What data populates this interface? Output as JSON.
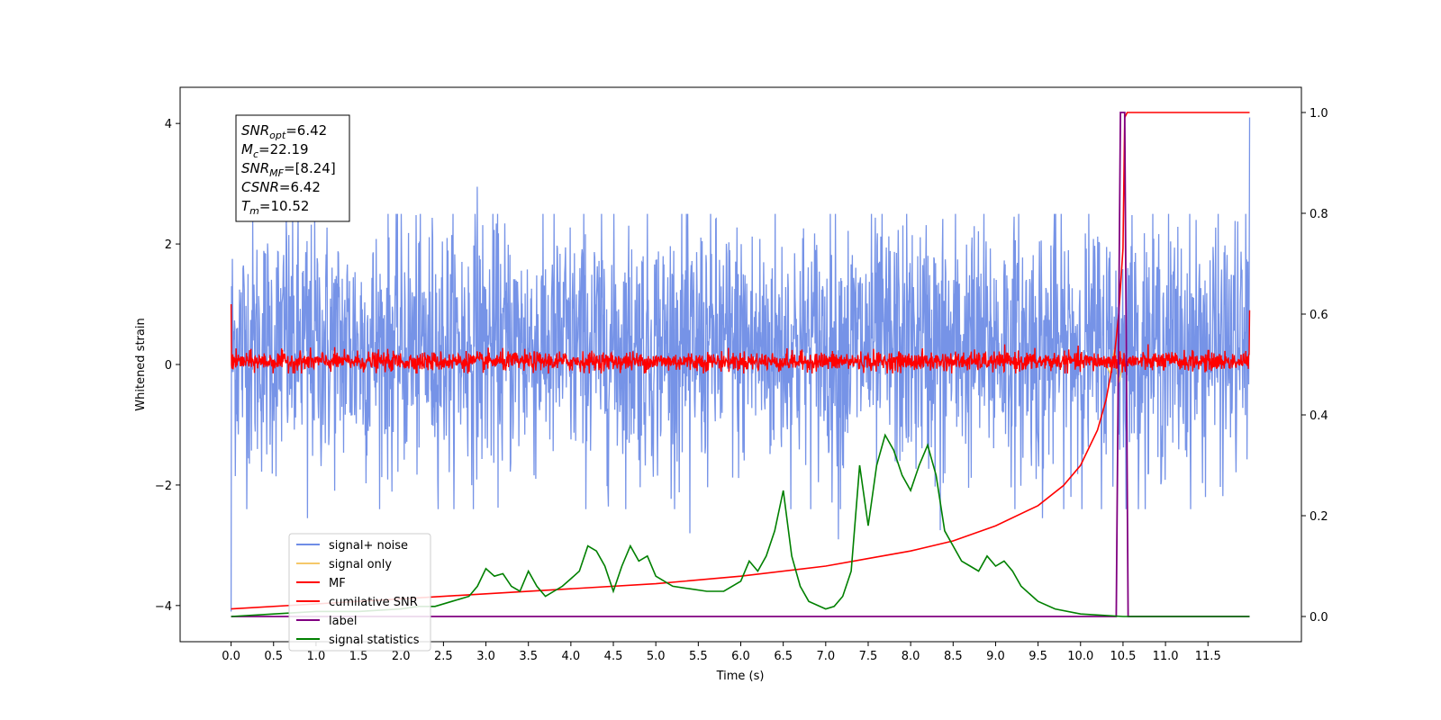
{
  "chart_data": {
    "type": "line",
    "title": "",
    "xlabel": "Time (s)",
    "ylabel": "Whitened strain",
    "xlim": [
      -0.6,
      12.6
    ],
    "ylim": [
      -4.6,
      4.6
    ],
    "y2lim": [
      -0.05,
      1.05
    ],
    "x_ticks": [
      0.0,
      0.5,
      1.0,
      1.5,
      2.0,
      2.5,
      3.0,
      3.5,
      4.0,
      4.5,
      5.0,
      5.5,
      6.0,
      6.5,
      7.0,
      7.5,
      8.0,
      8.5,
      9.0,
      9.5,
      10.0,
      10.5,
      11.0,
      11.5
    ],
    "x_tick_labels": [
      "0.0",
      "0.5",
      "1.0",
      "1.5",
      "2.0",
      "2.5",
      "3.0",
      "3.5",
      "4.0",
      "4.5",
      "5.0",
      "5.5",
      "6.0",
      "6.5",
      "7.0",
      "7.5",
      "8.0",
      "8.5",
      "9.0",
      "9.5",
      "10.0",
      "10.5",
      "11.0",
      "11.5"
    ],
    "y_ticks": [
      -4,
      -2,
      0,
      2,
      4
    ],
    "y_tick_labels": [
      "−4",
      "−2",
      "0",
      "2",
      "4"
    ],
    "y2_ticks": [
      0.0,
      0.2,
      0.4,
      0.6,
      0.8,
      1.0
    ],
    "y2_tick_labels": [
      "0.0",
      "0.2",
      "0.4",
      "0.6",
      "0.8",
      "1.0"
    ],
    "grid": false,
    "legend_position": "lower-left",
    "legend": [
      {
        "label": "signal+ noise",
        "color": "#6f8de6"
      },
      {
        "label": "signal only",
        "color": "#f5c86a"
      },
      {
        "label": "MF",
        "color": "#ff0000"
      },
      {
        "label": "cumilative SNR",
        "color": "#ff0000"
      },
      {
        "label": "label",
        "color": "#800080"
      },
      {
        "label": "signal statistics",
        "color": "#008000"
      }
    ],
    "annotation": [
      {
        "base": "SNR",
        "sub": "opt",
        "value": "=6.42"
      },
      {
        "base": "M",
        "sub": "c",
        "value": "=22.19"
      },
      {
        "base": "SNR",
        "sub": "MF",
        "value": "=[8.24]"
      },
      {
        "base": "CSNR",
        "sub": "",
        "value": "=6.42"
      },
      {
        "base": "T",
        "sub": "m",
        "value": "=10.52"
      }
    ],
    "series": {
      "signal_noise": {
        "axis": "left",
        "x_range": [
          0.0,
          11.99
        ],
        "samples": 2400,
        "typical_envelope": [
          -1.6,
          2.2
        ],
        "extremes": [
          {
            "x": 0.0,
            "y": -4.1
          },
          {
            "x": 0.65,
            "y": 2.45
          },
          {
            "x": 0.9,
            "y": -2.55
          },
          {
            "x": 2.9,
            "y": 2.95
          },
          {
            "x": 5.4,
            "y": -2.8
          },
          {
            "x": 7.15,
            "y": -2.9
          },
          {
            "x": 8.35,
            "y": -2.75
          },
          {
            "x": 9.55,
            "y": -2.55
          },
          {
            "x": 11.99,
            "y": 4.1
          }
        ]
      },
      "signal_only": {
        "axis": "left",
        "x": [
          10.3,
          10.35,
          10.4,
          10.45,
          10.5
        ],
        "y": [
          0.0,
          -0.15,
          0.25,
          -0.3,
          0.0
        ]
      },
      "mf": {
        "axis": "left",
        "x_range": [
          0.0,
          11.99
        ],
        "samples": 2400,
        "start_value": 1.0,
        "end_value": 0.9,
        "typical_envelope": [
          -0.15,
          0.3
        ]
      },
      "cumulative_snr": {
        "axis": "right",
        "x": [
          0.0,
          1.0,
          2.0,
          3.0,
          4.0,
          5.0,
          6.0,
          7.0,
          7.5,
          8.0,
          8.5,
          9.0,
          9.5,
          9.8,
          10.0,
          10.2,
          10.3,
          10.4,
          10.45,
          10.5,
          10.52,
          10.55,
          11.0,
          11.99
        ],
        "y": [
          0.015,
          0.025,
          0.035,
          0.045,
          0.055,
          0.065,
          0.08,
          0.1,
          0.115,
          0.13,
          0.15,
          0.18,
          0.22,
          0.26,
          0.3,
          0.37,
          0.43,
          0.52,
          0.6,
          0.73,
          0.99,
          1.0,
          1.0,
          1.0
        ]
      },
      "label": {
        "axis": "right",
        "x": [
          0.0,
          10.42,
          10.47,
          10.5,
          10.52,
          10.56,
          11.99
        ],
        "y": [
          0.0,
          0.0,
          1.0,
          1.0,
          1.0,
          0.0,
          0.0
        ]
      },
      "signal_statistics": {
        "axis": "right",
        "x": [
          0.0,
          0.5,
          1.0,
          1.5,
          2.0,
          2.2,
          2.4,
          2.6,
          2.8,
          2.9,
          3.0,
          3.1,
          3.2,
          3.3,
          3.4,
          3.5,
          3.6,
          3.7,
          3.8,
          3.9,
          4.0,
          4.1,
          4.2,
          4.3,
          4.4,
          4.5,
          4.6,
          4.7,
          4.8,
          4.9,
          5.0,
          5.2,
          5.4,
          5.6,
          5.8,
          6.0,
          6.1,
          6.2,
          6.3,
          6.4,
          6.5,
          6.6,
          6.7,
          6.8,
          7.0,
          7.1,
          7.2,
          7.3,
          7.4,
          7.5,
          7.6,
          7.7,
          7.8,
          7.9,
          8.0,
          8.1,
          8.2,
          8.3,
          8.4,
          8.5,
          8.6,
          8.7,
          8.8,
          8.9,
          9.0,
          9.1,
          9.2,
          9.3,
          9.5,
          9.7,
          10.0,
          10.5,
          11.0,
          11.99
        ],
        "y": [
          0.0,
          0.005,
          0.01,
          0.01,
          0.015,
          0.02,
          0.02,
          0.03,
          0.04,
          0.06,
          0.095,
          0.08,
          0.085,
          0.06,
          0.05,
          0.09,
          0.06,
          0.04,
          0.05,
          0.06,
          0.075,
          0.09,
          0.14,
          0.13,
          0.1,
          0.05,
          0.1,
          0.14,
          0.11,
          0.12,
          0.08,
          0.06,
          0.055,
          0.05,
          0.05,
          0.07,
          0.11,
          0.09,
          0.12,
          0.17,
          0.25,
          0.12,
          0.06,
          0.03,
          0.015,
          0.02,
          0.04,
          0.09,
          0.3,
          0.18,
          0.3,
          0.36,
          0.33,
          0.28,
          0.25,
          0.3,
          0.34,
          0.28,
          0.17,
          0.14,
          0.11,
          0.1,
          0.09,
          0.12,
          0.1,
          0.11,
          0.09,
          0.06,
          0.03,
          0.015,
          0.005,
          0.0,
          0.0,
          0.0
        ]
      }
    }
  }
}
